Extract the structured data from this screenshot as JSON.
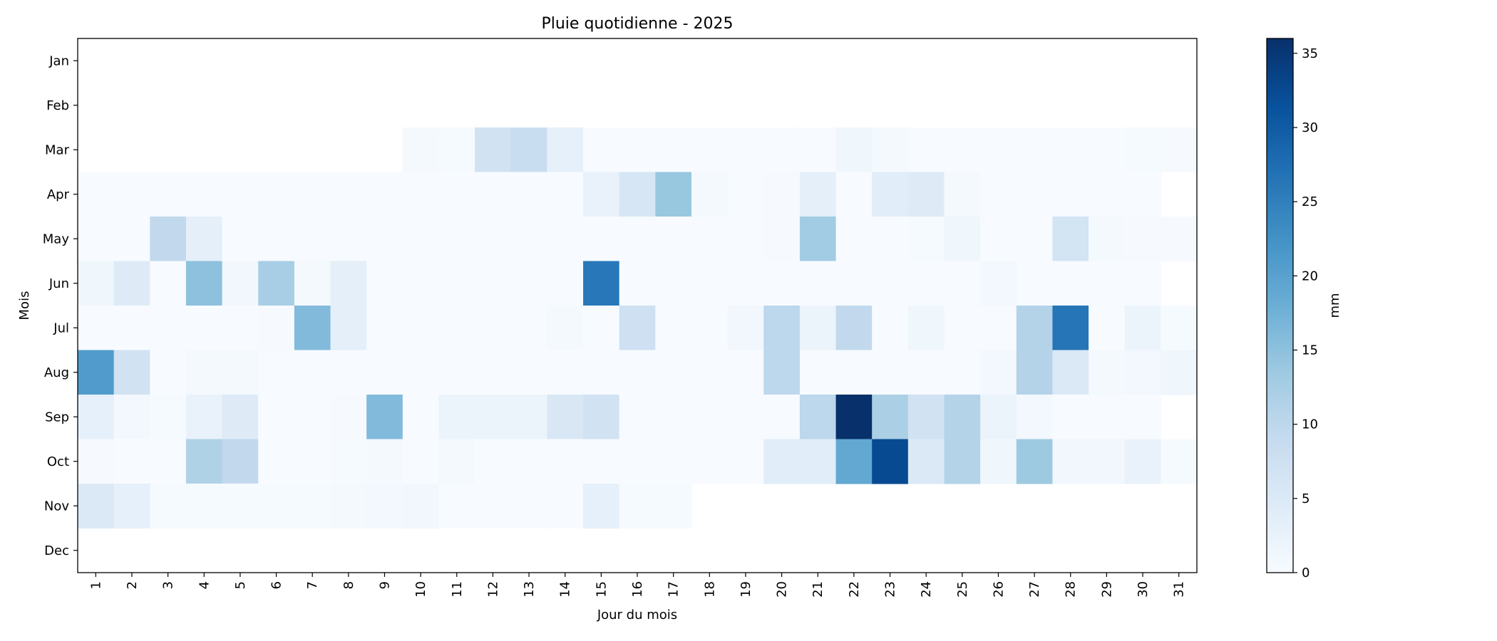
{
  "chart_data": {
    "type": "heatmap",
    "title": "Pluie quotidienne - 2025",
    "xlabel": "Jour du mois",
    "ylabel": "Mois",
    "colorbar_label": "mm",
    "colormap": "Blues",
    "color_low": "#f7fbff",
    "color_high": "#08306b",
    "vmin": 0,
    "vmax": 36,
    "colorbar_ticks": [
      0,
      5,
      10,
      15,
      20,
      25,
      30,
      35
    ],
    "x_categories": [
      "1",
      "2",
      "3",
      "4",
      "5",
      "6",
      "7",
      "8",
      "9",
      "10",
      "11",
      "12",
      "13",
      "14",
      "15",
      "16",
      "17",
      "18",
      "19",
      "20",
      "21",
      "22",
      "23",
      "24",
      "25",
      "26",
      "27",
      "28",
      "29",
      "30",
      "31"
    ],
    "y_categories": [
      "Jan",
      "Feb",
      "Mar",
      "Apr",
      "May",
      "Jun",
      "Jul",
      "Aug",
      "Sep",
      "Oct",
      "Nov",
      "Dec"
    ],
    "values": [
      [
        null,
        null,
        null,
        null,
        null,
        null,
        null,
        null,
        null,
        null,
        null,
        null,
        null,
        null,
        null,
        null,
        null,
        null,
        null,
        null,
        null,
        null,
        null,
        null,
        null,
        null,
        null,
        null,
        null,
        null,
        null
      ],
      [
        null,
        null,
        null,
        null,
        null,
        null,
        null,
        null,
        null,
        null,
        null,
        null,
        null,
        null,
        null,
        null,
        null,
        null,
        null,
        null,
        null,
        null,
        null,
        null,
        null,
        null,
        null,
        null,
        null,
        null,
        null
      ],
      [
        null,
        null,
        null,
        null,
        null,
        null,
        null,
        null,
        null,
        0.5,
        0.3,
        7,
        8.5,
        3,
        0,
        0,
        0,
        0,
        0,
        0,
        0,
        1.5,
        0.5,
        0,
        0,
        0,
        0,
        0,
        0,
        0.3,
        0.2
      ],
      [
        0,
        0,
        0,
        0,
        0,
        0,
        0,
        0,
        0,
        0,
        0,
        0,
        0,
        0,
        2.5,
        6,
        14,
        0.5,
        0,
        0.2,
        3.5,
        0,
        4,
        4.5,
        0.5,
        0,
        0,
        0,
        0,
        0,
        null
      ],
      [
        0,
        0,
        9.5,
        3.5,
        0,
        0,
        0,
        0,
        0,
        0,
        0,
        0,
        0,
        0,
        0,
        0,
        0,
        0,
        0,
        0.2,
        13,
        0,
        0,
        0.3,
        1.5,
        0,
        0,
        6.5,
        0.5,
        0.2,
        0.2
      ],
      [
        1.5,
        4.5,
        0,
        15,
        1,
        12.5,
        0.5,
        3.5,
        0,
        0,
        0,
        0,
        0,
        0,
        26,
        0,
        0,
        0,
        0,
        0,
        0,
        0,
        0,
        0,
        0,
        0.8,
        0,
        0,
        0,
        0,
        null
      ],
      [
        0,
        0,
        0,
        0,
        0,
        0.2,
        16,
        3.5,
        0,
        0,
        0,
        0,
        0,
        0.5,
        0,
        7.5,
        0,
        0,
        1,
        10,
        2,
        9.5,
        0,
        1.5,
        0,
        0,
        11,
        26.5,
        0,
        2,
        0.3
      ],
      [
        21,
        7,
        0,
        0.5,
        0.5,
        0,
        0,
        0,
        0,
        0,
        0,
        0,
        0,
        0,
        0,
        0,
        0,
        0,
        0,
        10,
        0,
        0,
        0,
        0,
        0,
        0.8,
        11,
        5,
        0.5,
        0.8,
        1.5
      ],
      [
        3,
        0.8,
        0.3,
        2.5,
        4.5,
        0,
        0,
        0.2,
        16,
        0,
        2,
        2,
        2,
        5.5,
        7,
        0,
        0,
        0,
        0,
        0,
        10,
        36,
        12,
        7,
        11,
        2,
        0.8,
        0,
        0,
        0,
        null
      ],
      [
        0.2,
        0,
        0,
        11.5,
        9.5,
        0,
        0,
        0.3,
        0.5,
        0,
        0.5,
        0,
        0,
        0,
        0,
        0,
        0,
        0,
        0,
        4,
        4,
        19,
        32.5,
        5,
        11,
        1.5,
        13.5,
        1,
        1,
        2.5,
        0.3
      ],
      [
        5,
        3,
        0.3,
        0.3,
        0.3,
        0.3,
        0.3,
        0.5,
        0.8,
        1,
        0,
        0,
        0,
        0,
        3,
        0.3,
        0.3,
        null,
        null,
        null,
        null,
        null,
        null,
        null,
        null,
        null,
        null,
        null,
        null,
        null,
        null
      ],
      [
        null,
        null,
        null,
        null,
        null,
        null,
        null,
        null,
        null,
        null,
        null,
        null,
        null,
        null,
        null,
        null,
        null,
        null,
        null,
        null,
        null,
        null,
        null,
        null,
        null,
        null,
        null,
        null,
        null,
        null,
        null
      ]
    ]
  }
}
